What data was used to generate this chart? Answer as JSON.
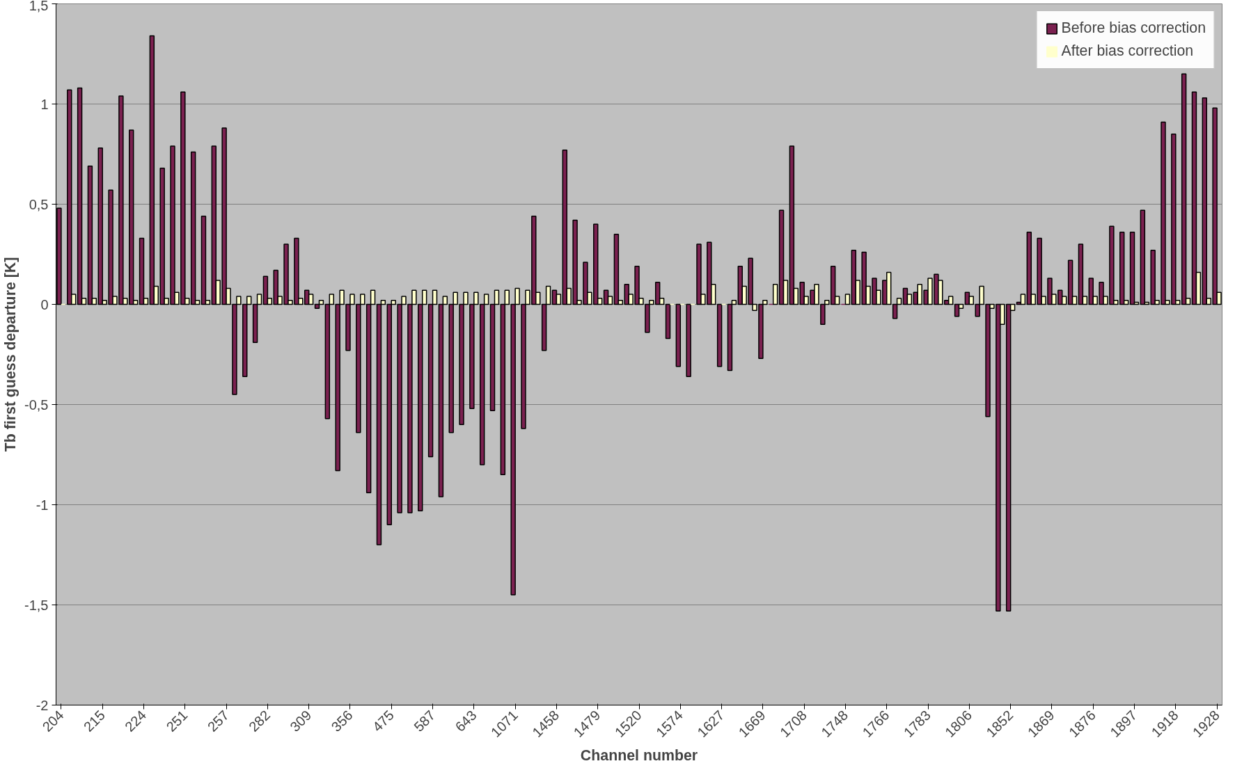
{
  "chart_data": {
    "type": "bar",
    "xlabel": "Channel number",
    "ylabel": "Tb first guess departure [K]",
    "categories": [
      "204",
      null,
      null,
      null,
      "215",
      null,
      null,
      null,
      "224",
      null,
      null,
      null,
      "251",
      null,
      null,
      null,
      "257",
      null,
      null,
      null,
      "282",
      null,
      null,
      null,
      "309",
      null,
      null,
      null,
      "356",
      null,
      null,
      null,
      "475",
      null,
      null,
      null,
      "587",
      null,
      null,
      null,
      "643",
      null,
      null,
      null,
      "1071",
      null,
      null,
      null,
      "1458",
      null,
      null,
      null,
      "1479",
      null,
      null,
      null,
      "1520",
      null,
      null,
      null,
      "1574",
      null,
      null,
      null,
      "1627",
      null,
      null,
      null,
      "1669",
      null,
      null,
      null,
      "1708",
      null,
      null,
      null,
      "1748",
      null,
      null,
      null,
      "1766",
      null,
      null,
      null,
      "1783",
      null,
      null,
      null,
      "1806",
      null,
      null,
      null,
      "1852",
      null,
      null,
      null,
      "1869",
      null,
      null,
      null,
      "1876",
      null,
      null,
      null,
      "1897",
      null,
      null,
      null,
      "1918",
      null,
      null,
      null,
      "1928"
    ],
    "series": [
      {
        "name": "Before bias correction",
        "color": "#7b2150",
        "values": [
          0.48,
          1.07,
          1.08,
          0.69,
          0.78,
          0.57,
          1.04,
          0.87,
          0.33,
          1.34,
          0.68,
          0.79,
          1.06,
          0.76,
          0.44,
          0.79,
          0.88,
          -0.45,
          -0.36,
          -0.19,
          0.14,
          0.17,
          0.3,
          0.33,
          0.07,
          -0.02,
          -0.57,
          -0.83,
          -0.23,
          -0.64,
          -0.94,
          -1.2,
          -1.1,
          -1.04,
          -1.04,
          -1.03,
          -0.76,
          -0.96,
          -0.64,
          -0.6,
          -0.52,
          -0.8,
          -0.53,
          -0.85,
          -1.45,
          -0.62,
          0.44,
          -0.23,
          0.07,
          0.77,
          0.42,
          0.21,
          0.4,
          0.07,
          0.35,
          0.1,
          0.19,
          -0.14,
          0.11,
          -0.17,
          -0.31,
          -0.36,
          0.3,
          0.31,
          -0.31,
          -0.33,
          0.19,
          0.23,
          -0.27,
          0.0,
          0.47,
          0.79,
          0.11,
          0.07,
          -0.1,
          0.19,
          0.0,
          0.27,
          0.26,
          0.13,
          0.12,
          -0.07,
          0.08,
          0.06,
          0.07,
          0.15,
          0.02,
          -0.06,
          0.06,
          -0.06,
          -0.56,
          -1.53,
          -1.53,
          0.01,
          0.36,
          0.33,
          0.13,
          0.07,
          0.22,
          0.3,
          0.13,
          0.11,
          0.39,
          0.36,
          0.36,
          0.47,
          0.27,
          0.91,
          0.85,
          1.15,
          1.06,
          1.03,
          0.98
        ]
      },
      {
        "name": "After bias correction",
        "color": "#ffffcc",
        "values": [
          0.0,
          0.05,
          0.03,
          0.03,
          0.02,
          0.04,
          0.03,
          0.02,
          0.03,
          0.09,
          0.03,
          0.06,
          0.03,
          0.02,
          0.02,
          0.12,
          0.08,
          0.04,
          0.04,
          0.05,
          0.03,
          0.04,
          0.02,
          0.03,
          0.05,
          0.02,
          0.05,
          0.07,
          0.05,
          0.05,
          0.07,
          0.02,
          0.02,
          0.04,
          0.07,
          0.07,
          0.07,
          0.04,
          0.06,
          0.06,
          0.06,
          0.05,
          0.07,
          0.07,
          0.08,
          0.07,
          0.06,
          0.09,
          0.05,
          0.08,
          0.02,
          0.06,
          0.03,
          0.04,
          0.02,
          0.05,
          0.03,
          0.02,
          0.03,
          0.0,
          0.0,
          0.0,
          0.05,
          0.1,
          0.0,
          0.02,
          0.09,
          -0.03,
          0.02,
          0.1,
          0.12,
          0.08,
          0.04,
          0.1,
          0.02,
          0.04,
          0.05,
          0.12,
          0.09,
          0.07,
          0.16,
          0.03,
          0.05,
          0.1,
          0.13,
          0.12,
          0.04,
          -0.02,
          0.04,
          0.09,
          -0.02,
          -0.1,
          -0.03,
          0.05,
          0.05,
          0.04,
          0.05,
          0.04,
          0.04,
          0.04,
          0.04,
          0.04,
          0.02,
          0.02,
          0.01,
          0.01,
          0.02,
          0.02,
          0.02,
          0.03,
          0.16,
          0.03,
          0.06
        ]
      }
    ],
    "ylim": [
      -2,
      1.5
    ],
    "yticks": [
      {
        "value": -2,
        "label": "-2"
      },
      {
        "value": -1.5,
        "label": "-1,5"
      },
      {
        "value": -1,
        "label": "-1"
      },
      {
        "value": -0.5,
        "label": "-0,5"
      },
      {
        "value": 0,
        "label": "0"
      },
      {
        "value": 0.5,
        "label": "0,5"
      },
      {
        "value": 1,
        "label": "1"
      },
      {
        "value": 1.5,
        "label": "1,5"
      }
    ],
    "grid": "y",
    "legend": "top right"
  }
}
